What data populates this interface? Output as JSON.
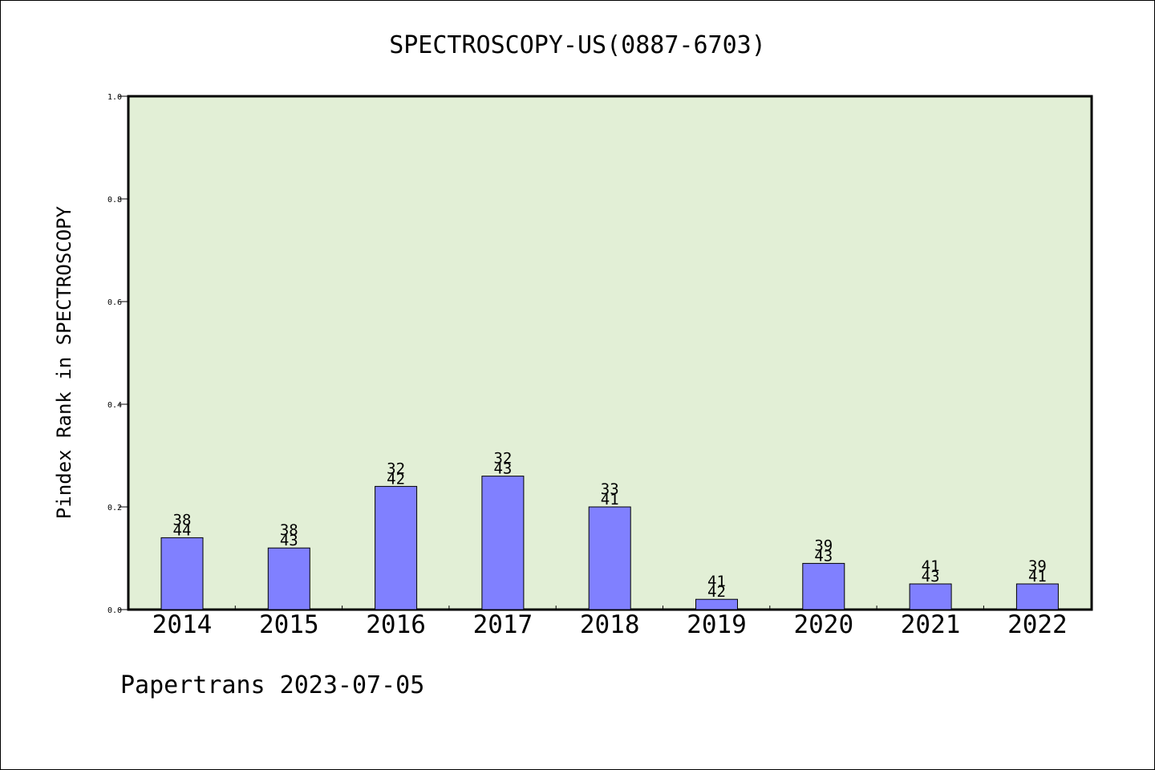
{
  "title": "SPECTROSCOPY-US(0887-6703)",
  "footer": "Papertrans 2023-07-05",
  "colors": {
    "plot_bg": "#e2efd6",
    "bar": "#8080ff",
    "frame": "#000000"
  },
  "chart_data": {
    "type": "bar",
    "title": "SPECTROSCOPY-US(0887-6703)",
    "xlabel": "",
    "ylabel": "Pindex Rank in SPECTROSCOPY",
    "ylim": [
      0,
      1.0
    ],
    "yticks": [
      0.0,
      0.2,
      0.4,
      0.6,
      0.8,
      1.0
    ],
    "ytick_labels": [
      "0.0",
      "0.2",
      "0.4",
      "0.6",
      "0.8",
      "1.0"
    ],
    "categories": [
      "2014",
      "2015",
      "2016",
      "2017",
      "2018",
      "2019",
      "2020",
      "2021",
      "2022"
    ],
    "values": [
      0.14,
      0.12,
      0.24,
      0.26,
      0.2,
      0.02,
      0.09,
      0.05,
      0.05
    ],
    "labels_top": [
      "38",
      "38",
      "32",
      "32",
      "33",
      "41",
      "39",
      "41",
      "39"
    ],
    "labels_bottom": [
      "44",
      "43",
      "42",
      "43",
      "41",
      "42",
      "43",
      "43",
      "41"
    ],
    "grid": false,
    "legend": "none"
  }
}
